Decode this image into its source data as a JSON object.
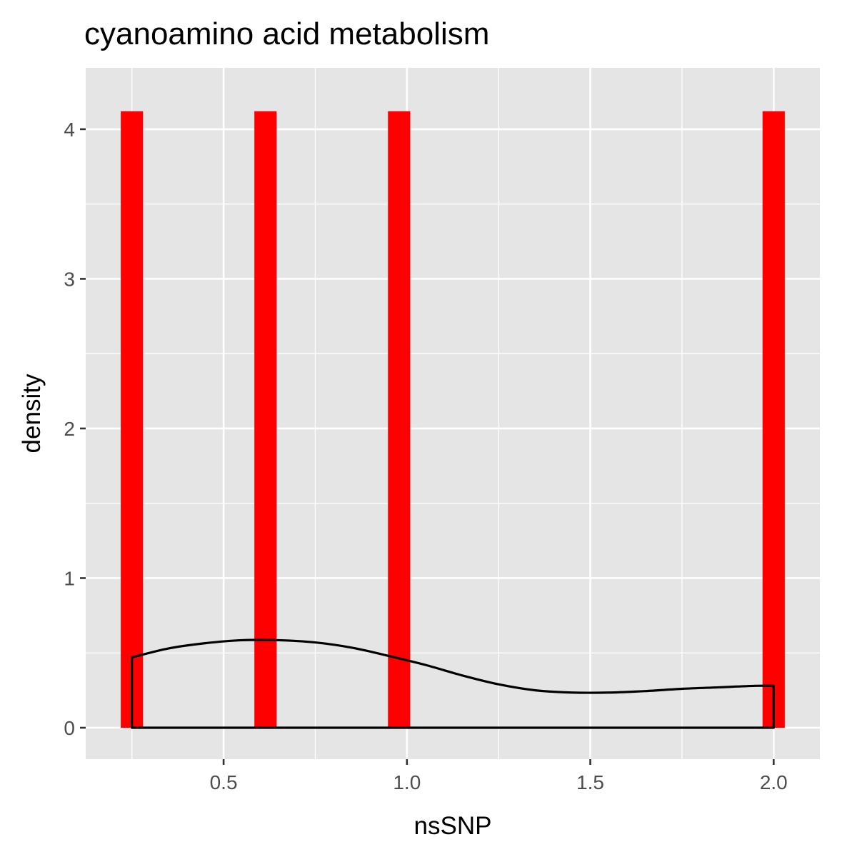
{
  "chart_data": {
    "type": "bar",
    "title": "cyanoamino acid metabolism",
    "xlabel": "nsSNP",
    "ylabel": "density",
    "xlim": [
      0.124,
      2.126
    ],
    "ylim": [
      -0.21,
      4.41
    ],
    "x_ticks": [
      0.5,
      1.0,
      1.5,
      2.0
    ],
    "x_tick_labels": [
      "0.5",
      "1.0",
      "1.5",
      "2.0"
    ],
    "x_minor_ticks": [
      0.25,
      0.75,
      1.25,
      1.75
    ],
    "y_ticks": [
      0,
      1,
      2,
      3,
      4
    ],
    "y_tick_labels": [
      "0",
      "1",
      "2",
      "3",
      "4"
    ],
    "y_minor_ticks": [
      0.5,
      1.5,
      2.5,
      3.5
    ],
    "grid": true,
    "legend": "none",
    "bar_width": 0.0607,
    "bars": [
      {
        "x": 0.25,
        "value": 4.12
      },
      {
        "x": 0.6143,
        "value": 4.12
      },
      {
        "x": 0.9786,
        "value": 4.12
      },
      {
        "x": 2.0,
        "value": 4.12
      }
    ],
    "density_curve": {
      "x": [
        0.25,
        0.35,
        0.45,
        0.55,
        0.65,
        0.75,
        0.85,
        0.95,
        1.05,
        1.15,
        1.25,
        1.35,
        1.45,
        1.55,
        1.65,
        1.75,
        1.85,
        1.95,
        2.0
      ],
      "y": [
        0.47,
        0.53,
        0.565,
        0.585,
        0.585,
        0.57,
        0.535,
        0.48,
        0.42,
        0.35,
        0.29,
        0.25,
        0.235,
        0.235,
        0.245,
        0.26,
        0.27,
        0.28,
        0.28
      ]
    },
    "colors": {
      "panel_background": "#e5e5e5",
      "grid_line": "#ffffff",
      "bar_fill": "#ff0000",
      "density_line": "#000000",
      "tick_label": "#4d4d4d",
      "tick_mark": "#333333"
    }
  }
}
